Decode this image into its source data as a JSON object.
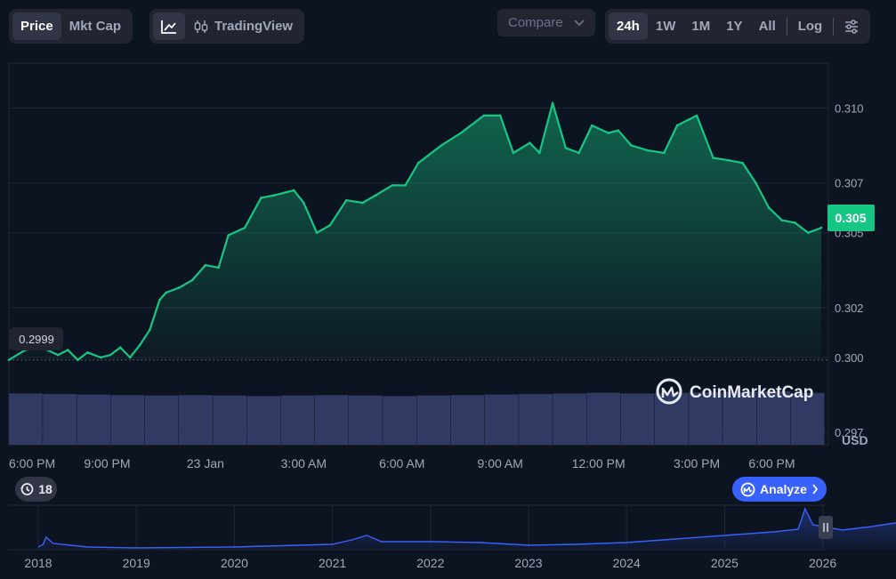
{
  "toolbar": {
    "price": "Price",
    "mkt_cap": "Mkt Cap",
    "tradingview": "TradingView",
    "compare": "Compare",
    "ranges": [
      "24h",
      "1W",
      "1M",
      "1Y",
      "All"
    ],
    "active_range": "24h",
    "log": "Log"
  },
  "chart": {
    "start_price_label": "0.2999",
    "current_price_label": "0.305",
    "currency": "USD",
    "watermark": "CoinMarketCap",
    "history_badge": "18",
    "analyze": "Analyze"
  },
  "colors": {
    "up": "#16c784",
    "down": "#ea3943",
    "volume": "#313a63",
    "nav": "#3861fb",
    "background": "#0d1421"
  },
  "chart_data": {
    "type": "area",
    "y_ticks": [
      "0.297",
      "0.300",
      "0.302",
      "0.305",
      "0.307",
      "0.310"
    ],
    "x_ticks": [
      "6:00 PM",
      "9:00 PM",
      "23 Jan",
      "3:00 AM",
      "6:00 AM",
      "9:00 AM",
      "12:00 PM",
      "3:00 PM",
      "6:00 PM"
    ],
    "ylim": [
      0.2965,
      0.3118
    ],
    "xlim": [
      0,
      24.8
    ],
    "baseline": 0.2999,
    "series": [
      {
        "x": [
          0,
          0.5,
          1,
          1.5,
          1.8,
          2.1,
          2.4,
          2.8,
          3.1,
          3.4,
          3.7,
          4,
          4.3,
          4.6,
          4.8,
          5.2,
          5.6,
          6,
          6.4,
          6.7,
          7.2,
          7.7,
          8.1,
          8.4,
          8.7,
          9,
          9.4,
          9.8,
          10.3,
          10.8,
          11.2,
          11.7,
          12.1,
          12.5,
          12.8,
          13.2,
          13.8,
          14.5,
          15,
          15.4,
          15.9,
          16.2,
          16.6,
          17,
          17.4,
          17.8,
          18.3,
          18.6,
          19,
          19.5,
          20,
          20.4,
          21,
          21.5,
          22,
          22.4,
          22.8,
          23.2,
          23.6,
          24.0,
          24.4,
          24.8
        ],
        "values": [
          0.2999,
          0.3003,
          0.3004,
          0.3001,
          0.3003,
          0.2999,
          0.3002,
          0.3,
          0.3001,
          0.3004,
          0.3,
          0.3005,
          0.3011,
          0.3023,
          0.3026,
          0.3028,
          0.3031,
          0.3037,
          0.3036,
          0.3049,
          0.3052,
          0.3064,
          0.3065,
          0.3066,
          0.3067,
          0.3062,
          0.305,
          0.3053,
          0.3063,
          0.3062,
          0.3065,
          0.3069,
          0.3069,
          0.3078,
          0.3081,
          0.3085,
          0.309,
          0.3097,
          0.3097,
          0.3082,
          0.3086,
          0.3082,
          0.3102,
          0.3084,
          0.3082,
          0.3093,
          0.309,
          0.3091,
          0.3085,
          0.3083,
          0.3082,
          0.3093,
          0.3097,
          0.308,
          0.3079,
          0.3078,
          0.307,
          0.306,
          0.3055,
          0.3054,
          0.305,
          0.3052
        ]
      }
    ],
    "volume": [
      0.96,
      0.95,
      0.94,
      0.93,
      0.92,
      0.93,
      0.92,
      0.91,
      0.92,
      0.93,
      0.92,
      0.91,
      0.92,
      0.93,
      0.94,
      0.95,
      0.96,
      0.97,
      0.96,
      0.97,
      0.98,
      0.99,
      1.0,
      0.97
    ],
    "navigator": {
      "x_ticks": [
        "2018",
        "2019",
        "2020",
        "2021",
        "2022",
        "2023",
        "2024",
        "2025",
        "2026"
      ]
    }
  }
}
